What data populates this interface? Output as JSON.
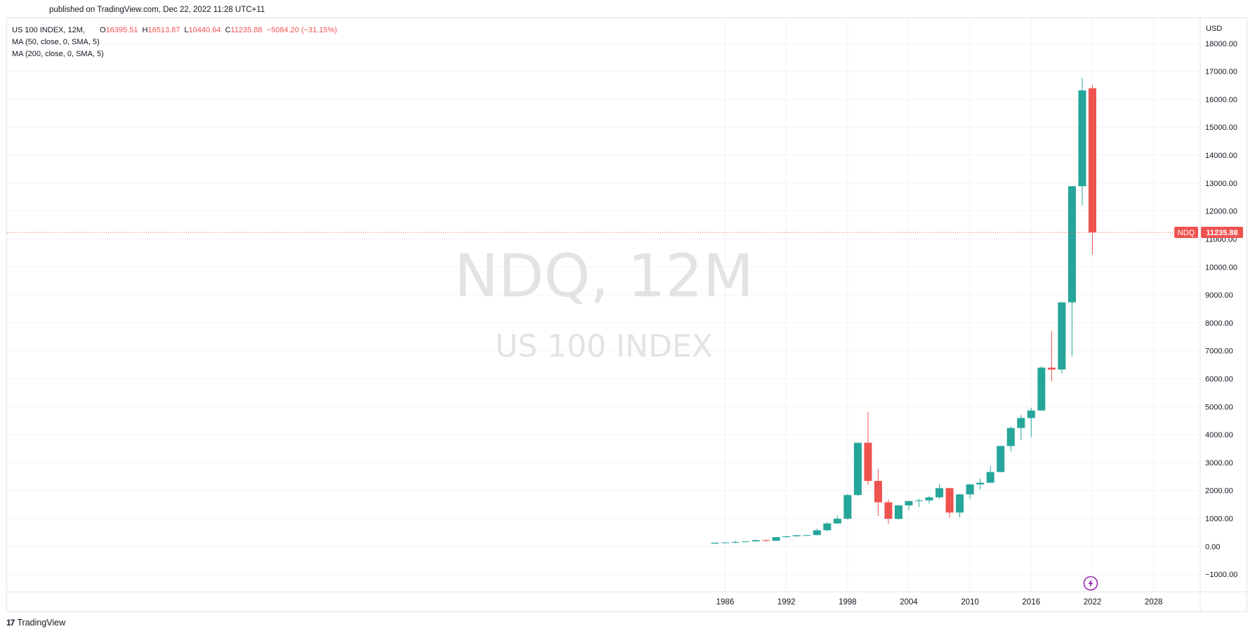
{
  "header": {
    "published": "published on TradingView.com, Dec 22, 2022 11:28 UTC+11"
  },
  "legend": {
    "symbol": "US 100 INDEX, 12M,",
    "open_label": "O",
    "open": "16395.51",
    "high_label": "H",
    "high": "16513.87",
    "low_label": "L",
    "low": "10440.64",
    "close_label": "C",
    "close": "11235.88",
    "change": "−5084.20 (−31.15%)",
    "ma1": "MA (50, close, 0, SMA, 5)",
    "ma2": "MA (200, close, 0, SMA, 5)"
  },
  "watermark": {
    "ticker": "NDQ, 12M",
    "name": "US 100 INDEX"
  },
  "price_tag": {
    "ticker": "NDQ",
    "value": "11235.88"
  },
  "footer": {
    "logo_mark": "17",
    "brand": "TradingView"
  },
  "colors": {
    "up": "#26a69a",
    "down": "#ef5350",
    "grid": "#f0f3fa",
    "axis_text": "#131722",
    "watermark": "#e3e3e3",
    "event_icon": "#9c27b0"
  },
  "icons": {
    "event": "lightning-icon"
  },
  "chart_data": {
    "type": "candlestick",
    "currency": "USD",
    "y_ticks": [
      -1000,
      0,
      1000,
      2000,
      3000,
      4000,
      5000,
      6000,
      7000,
      8000,
      9000,
      10000,
      11000,
      12000,
      13000,
      14000,
      15000,
      16000,
      17000,
      18000
    ],
    "y_tick_labels": [
      "−1000.00",
      "0.00",
      "1000.00",
      "2000.00",
      "3000.00",
      "4000.00",
      "5000.00",
      "6000.00",
      "7000.00",
      "8000.00",
      "9000.00",
      "10000.00",
      "11000.00",
      "12000.00",
      "13000.00",
      "14000.00",
      "15000.00",
      "16000.00",
      "17000.00",
      "18000.00"
    ],
    "x_ticks": [
      "1986",
      "1992",
      "1998",
      "2004",
      "2010",
      "2016",
      "2022",
      "2028"
    ],
    "ylim": [
      -1600,
      18900
    ],
    "xlim": [
      1915.6,
      2032.5
    ],
    "last_price": 11235.88,
    "candles": [
      {
        "year": 1985,
        "o": 100,
        "h": 137,
        "l": 95,
        "c": 132
      },
      {
        "year": 1986,
        "o": 132,
        "h": 158,
        "l": 128,
        "c": 141
      },
      {
        "year": 1987,
        "o": 141,
        "h": 201,
        "l": 110,
        "c": 156
      },
      {
        "year": 1988,
        "o": 156,
        "h": 180,
        "l": 152,
        "c": 177
      },
      {
        "year": 1989,
        "o": 177,
        "h": 240,
        "l": 175,
        "c": 223
      },
      {
        "year": 1990,
        "o": 223,
        "h": 246,
        "l": 165,
        "c": 200
      },
      {
        "year": 1991,
        "o": 200,
        "h": 331,
        "l": 192,
        "c": 330
      },
      {
        "year": 1992,
        "o": 330,
        "h": 361,
        "l": 307,
        "c": 360
      },
      {
        "year": 1993,
        "o": 360,
        "h": 403,
        "l": 350,
        "c": 398
      },
      {
        "year": 1994,
        "o": 398,
        "h": 410,
        "l": 375,
        "c": 404
      },
      {
        "year": 1995,
        "o": 404,
        "h": 637,
        "l": 396,
        "c": 576
      },
      {
        "year": 1996,
        "o": 576,
        "h": 865,
        "l": 545,
        "c": 821
      },
      {
        "year": 1997,
        "o": 821,
        "h": 1110,
        "l": 800,
        "c": 990
      },
      {
        "year": 1998,
        "o": 990,
        "h": 1880,
        "l": 950,
        "c": 1836
      },
      {
        "year": 1999,
        "o": 1836,
        "h": 3710,
        "l": 1800,
        "c": 3708
      },
      {
        "year": 2000,
        "o": 3708,
        "h": 4816,
        "l": 2200,
        "c": 2341
      },
      {
        "year": 2001,
        "o": 2341,
        "h": 2760,
        "l": 1090,
        "c": 1577
      },
      {
        "year": 2002,
        "o": 1577,
        "h": 1675,
        "l": 800,
        "c": 984
      },
      {
        "year": 2003,
        "o": 984,
        "h": 1470,
        "l": 950,
        "c": 1467
      },
      {
        "year": 2004,
        "o": 1467,
        "h": 1630,
        "l": 1300,
        "c": 1621
      },
      {
        "year": 2005,
        "o": 1621,
        "h": 1700,
        "l": 1400,
        "c": 1645
      },
      {
        "year": 2006,
        "o": 1645,
        "h": 1800,
        "l": 1530,
        "c": 1756
      },
      {
        "year": 2007,
        "o": 1756,
        "h": 2240,
        "l": 1700,
        "c": 2084
      },
      {
        "year": 2008,
        "o": 2084,
        "h": 2100,
        "l": 1018,
        "c": 1211
      },
      {
        "year": 2009,
        "o": 1211,
        "h": 1880,
        "l": 1040,
        "c": 1860
      },
      {
        "year": 2010,
        "o": 1860,
        "h": 2240,
        "l": 1700,
        "c": 2217
      },
      {
        "year": 2011,
        "o": 2217,
        "h": 2430,
        "l": 2030,
        "c": 2277
      },
      {
        "year": 2012,
        "o": 2277,
        "h": 2880,
        "l": 2260,
        "c": 2660
      },
      {
        "year": 2013,
        "o": 2660,
        "h": 3600,
        "l": 2650,
        "c": 3592
      },
      {
        "year": 2014,
        "o": 3592,
        "h": 4300,
        "l": 3400,
        "c": 4236
      },
      {
        "year": 2015,
        "o": 4236,
        "h": 4700,
        "l": 3800,
        "c": 4593
      },
      {
        "year": 2016,
        "o": 4593,
        "h": 4965,
        "l": 3900,
        "c": 4863
      },
      {
        "year": 2017,
        "o": 4863,
        "h": 6450,
        "l": 4850,
        "c": 6396
      },
      {
        "year": 2018,
        "o": 6396,
        "h": 7700,
        "l": 5900,
        "c": 6329
      },
      {
        "year": 2019,
        "o": 6329,
        "h": 8750,
        "l": 6190,
        "c": 8733
      },
      {
        "year": 2020,
        "o": 8733,
        "h": 12900,
        "l": 6800,
        "c": 12888
      },
      {
        "year": 2021,
        "o": 12888,
        "h": 16760,
        "l": 12200,
        "c": 16320
      },
      {
        "year": 2022,
        "o": 16395.51,
        "h": 16513.87,
        "l": 10440.64,
        "c": 11235.88
      }
    ]
  }
}
